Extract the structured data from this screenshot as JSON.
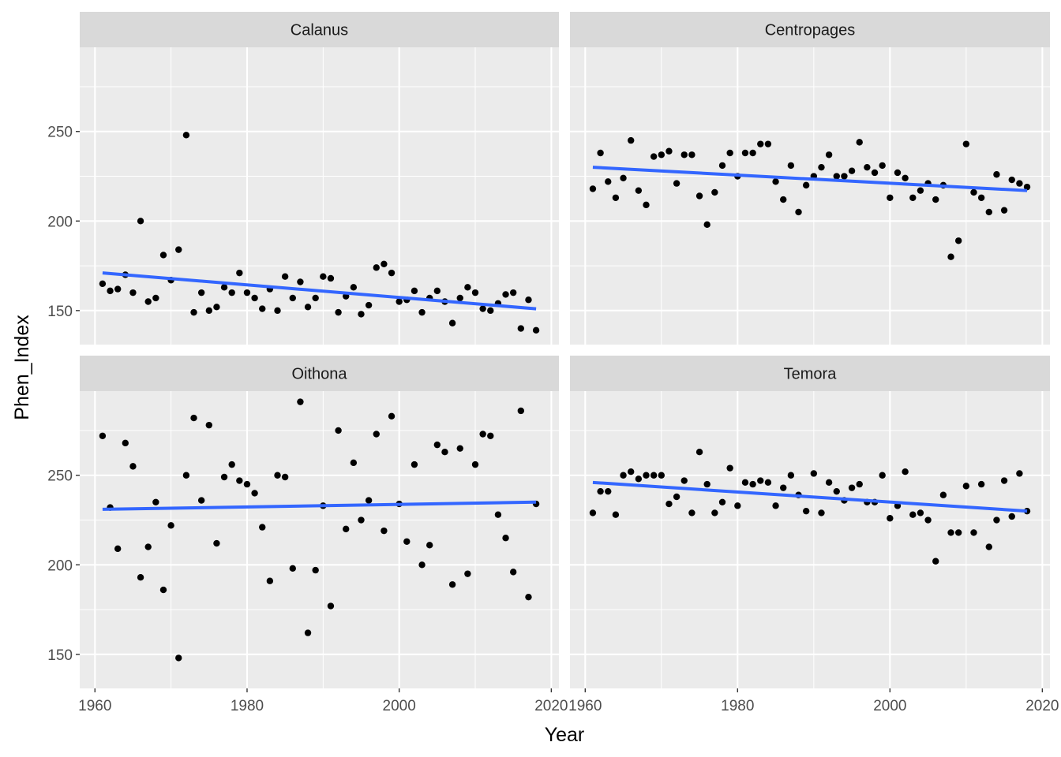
{
  "chart_data": {
    "type": "scatter",
    "facet_layout": "2x2",
    "xlabel": "Year",
    "ylabel": "Phen_Index",
    "xlim": [
      1958,
      2021
    ],
    "ylim": [
      131,
      297
    ],
    "x_ticks": [
      1960,
      1980,
      2000,
      2020
    ],
    "y_ticks": [
      150,
      200,
      250
    ],
    "grid": true,
    "colors": {
      "points": "#000000",
      "trend": "#3366ff",
      "panel": "#ebebeb",
      "strip": "#d9d9d9"
    },
    "facets": [
      {
        "name": "Calanus",
        "trend": {
          "x": [
            1961,
            2018
          ],
          "y": [
            171,
            151
          ]
        },
        "x": [
          1961,
          1962,
          1963,
          1964,
          1965,
          1966,
          1967,
          1968,
          1969,
          1970,
          1971,
          1972,
          1973,
          1974,
          1975,
          1976,
          1977,
          1978,
          1979,
          1980,
          1981,
          1982,
          1983,
          1984,
          1985,
          1986,
          1987,
          1988,
          1989,
          1990,
          1991,
          1992,
          1993,
          1994,
          1995,
          1996,
          1997,
          1998,
          1999,
          2000,
          2001,
          2002,
          2003,
          2004,
          2005,
          2006,
          2007,
          2008,
          2009,
          2010,
          2011,
          2012,
          2013,
          2014,
          2015,
          2016,
          2017,
          2018
        ],
        "y": [
          165,
          161,
          162,
          170,
          160,
          200,
          155,
          157,
          181,
          167,
          184,
          248,
          149,
          160,
          150,
          152,
          163,
          160,
          171,
          160,
          157,
          151,
          162,
          150,
          169,
          157,
          166,
          152,
          157,
          169,
          168,
          149,
          158,
          163,
          148,
          153,
          174,
          176,
          171,
          155,
          156,
          161,
          149,
          157,
          161,
          155,
          143,
          157,
          163,
          160,
          151,
          150,
          154,
          159,
          160,
          140,
          156,
          139
        ]
      },
      {
        "name": "Centropages",
        "trend": {
          "x": [
            1961,
            2018
          ],
          "y": [
            230,
            217
          ]
        },
        "x": [
          1961,
          1962,
          1963,
          1964,
          1965,
          1966,
          1967,
          1968,
          1969,
          1970,
          1971,
          1972,
          1973,
          1974,
          1975,
          1976,
          1977,
          1978,
          1979,
          1980,
          1981,
          1982,
          1983,
          1984,
          1985,
          1986,
          1987,
          1988,
          1989,
          1990,
          1991,
          1992,
          1993,
          1994,
          1995,
          1996,
          1997,
          1998,
          1999,
          2000,
          2001,
          2002,
          2003,
          2004,
          2005,
          2006,
          2007,
          2008,
          2009,
          2010,
          2011,
          2012,
          2013,
          2014,
          2015,
          2016,
          2017,
          2018
        ],
        "y": [
          218,
          238,
          222,
          213,
          224,
          245,
          217,
          209,
          236,
          237,
          239,
          221,
          237,
          237,
          214,
          198,
          216,
          231,
          238,
          225,
          238,
          238,
          243,
          243,
          222,
          212,
          231,
          205,
          220,
          225,
          230,
          237,
          225,
          225,
          228,
          244,
          230,
          227,
          231,
          213,
          227,
          224,
          213,
          217,
          221,
          212,
          220,
          180,
          189,
          243,
          216,
          213,
          205,
          226,
          206,
          223,
          221,
          219
        ]
      },
      {
        "name": "Oithona",
        "trend": {
          "x": [
            1961,
            2018
          ],
          "y": [
            231,
            235
          ]
        },
        "x": [
          1961,
          1962,
          1963,
          1964,
          1965,
          1966,
          1967,
          1968,
          1969,
          1970,
          1971,
          1972,
          1973,
          1974,
          1975,
          1976,
          1977,
          1978,
          1979,
          1980,
          1981,
          1982,
          1983,
          1984,
          1985,
          1986,
          1987,
          1988,
          1989,
          1990,
          1991,
          1992,
          1993,
          1994,
          1995,
          1996,
          1997,
          1998,
          1999,
          2000,
          2001,
          2002,
          2003,
          2004,
          2005,
          2006,
          2007,
          2008,
          2009,
          2010,
          2011,
          2012,
          2013,
          2014,
          2015,
          2016,
          2017,
          2018
        ],
        "y": [
          272,
          232,
          209,
          268,
          255,
          193,
          210,
          235,
          186,
          222,
          148,
          250,
          282,
          236,
          278,
          212,
          249,
          256,
          247,
          245,
          240,
          221,
          191,
          250,
          249,
          198,
          291,
          162,
          197,
          233,
          177,
          275,
          220,
          257,
          225,
          236,
          273,
          219,
          283,
          234,
          213,
          256,
          200,
          211,
          267,
          263,
          189,
          265,
          195,
          256,
          273,
          272,
          228,
          215,
          196,
          286,
          182,
          234
        ]
      },
      {
        "name": "Temora",
        "trend": {
          "x": [
            1961,
            2018
          ],
          "y": [
            246,
            230
          ]
        },
        "x": [
          1961,
          1962,
          1963,
          1964,
          1965,
          1966,
          1967,
          1968,
          1969,
          1970,
          1971,
          1972,
          1973,
          1974,
          1975,
          1976,
          1977,
          1978,
          1979,
          1980,
          1981,
          1982,
          1983,
          1984,
          1985,
          1986,
          1987,
          1988,
          1989,
          1990,
          1991,
          1992,
          1993,
          1994,
          1995,
          1996,
          1997,
          1998,
          1999,
          2000,
          2001,
          2002,
          2003,
          2004,
          2005,
          2006,
          2007,
          2008,
          2009,
          2010,
          2011,
          2012,
          2013,
          2014,
          2015,
          2016,
          2017,
          2018
        ],
        "y": [
          229,
          241,
          241,
          228,
          250,
          252,
          248,
          250,
          250,
          250,
          234,
          238,
          247,
          229,
          263,
          245,
          229,
          235,
          254,
          233,
          246,
          245,
          247,
          246,
          233,
          243,
          250,
          239,
          230,
          251,
          229,
          246,
          241,
          236,
          243,
          245,
          235,
          235,
          250,
          226,
          233,
          252,
          228,
          229,
          225,
          202,
          239,
          218,
          218,
          244,
          218,
          245,
          210,
          225,
          247,
          227,
          251,
          230
        ]
      }
    ]
  }
}
